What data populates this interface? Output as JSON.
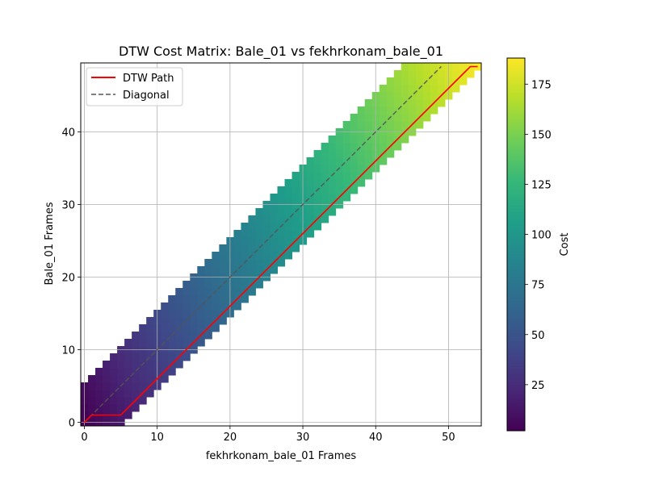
{
  "chart_data": {
    "type": "heatmap",
    "title": "DTW Cost Matrix: Bale_01 vs fekhrkonam_bale_01",
    "xlabel": "fekhrkonam_bale_01 Frames",
    "ylabel": "Bale_01 Frames",
    "xlim": [
      -0.5,
      54.5
    ],
    "ylim": [
      -0.5,
      49.5
    ],
    "x_ticks": [
      0,
      10,
      20,
      30,
      40,
      50
    ],
    "y_ticks": [
      0,
      10,
      20,
      30,
      40
    ],
    "grid": true,
    "colormap": "viridis",
    "matrix_size": {
      "rows": 50,
      "cols": 55
    },
    "band_width": 5,
    "cost_range": [
      2,
      188
    ],
    "colorbar": {
      "label": "Cost",
      "range": [
        2,
        188
      ],
      "ticks": [
        25,
        50,
        75,
        100,
        125,
        150,
        175
      ]
    },
    "legend": {
      "position": "upper-left",
      "entries": [
        {
          "label": "DTW Path",
          "color": "#ff0000",
          "style": "solid"
        },
        {
          "label": "Diagonal",
          "color": "#808080",
          "style": "dashed"
        }
      ]
    },
    "series": [
      {
        "name": "DTW Path",
        "color": "#ff0000",
        "points": [
          [
            0,
            0
          ],
          [
            1,
            1
          ],
          [
            2,
            1
          ],
          [
            3,
            1
          ],
          [
            4,
            1
          ],
          [
            5,
            1
          ],
          [
            6,
            2
          ],
          [
            7,
            3
          ],
          [
            8,
            4
          ],
          [
            9,
            5
          ],
          [
            10,
            6
          ],
          [
            11,
            7
          ],
          [
            12,
            8
          ],
          [
            13,
            9
          ],
          [
            14,
            10
          ],
          [
            15,
            11
          ],
          [
            16,
            12
          ],
          [
            17,
            13
          ],
          [
            18,
            14
          ],
          [
            19,
            15
          ],
          [
            20,
            16
          ],
          [
            21,
            17
          ],
          [
            22,
            18
          ],
          [
            23,
            19
          ],
          [
            24,
            20
          ],
          [
            25,
            21
          ],
          [
            26,
            22
          ],
          [
            27,
            23
          ],
          [
            28,
            24
          ],
          [
            29,
            25
          ],
          [
            30,
            26
          ],
          [
            31,
            27
          ],
          [
            32,
            28
          ],
          [
            33,
            29
          ],
          [
            34,
            30
          ],
          [
            35,
            31
          ],
          [
            36,
            32
          ],
          [
            37,
            33
          ],
          [
            38,
            34
          ],
          [
            39,
            35
          ],
          [
            40,
            36
          ],
          [
            41,
            37
          ],
          [
            42,
            38
          ],
          [
            43,
            39
          ],
          [
            44,
            40
          ],
          [
            45,
            41
          ],
          [
            46,
            42
          ],
          [
            47,
            43
          ],
          [
            48,
            44
          ],
          [
            49,
            45
          ],
          [
            50,
            46
          ],
          [
            51,
            47
          ],
          [
            52,
            48
          ],
          [
            53,
            49
          ],
          [
            54,
            49
          ]
        ]
      },
      {
        "name": "Diagonal",
        "color": "#808080",
        "points": [
          [
            0,
            0
          ],
          [
            49,
            49
          ]
        ]
      }
    ]
  }
}
